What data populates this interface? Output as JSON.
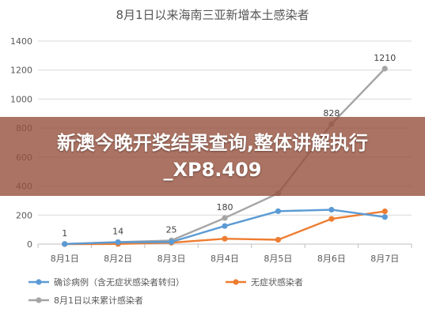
{
  "chart_data": {
    "type": "line",
    "title": "8月1日以来海南三亚新增本土感染者",
    "categories": [
      "8月1日",
      "8月2日",
      "8月3日",
      "8月4日",
      "8月5日",
      "8月6日",
      "8月7日"
    ],
    "ylim": [
      0,
      1400
    ],
    "yticks": [
      0,
      200,
      400,
      600,
      800,
      1000,
      1200,
      1400
    ],
    "grid": true,
    "legend_position": "bottom",
    "series": [
      {
        "name": "确诊病例（含无症状感染者转归）",
        "color": "#5b9bd5",
        "values": [
          1,
          13,
          15,
          125,
          227,
          237,
          187
        ],
        "data_labels": [
          null,
          null,
          null,
          null,
          null,
          null,
          null
        ]
      },
      {
        "name": "无症状感染者",
        "color": "#ed7d31",
        "values": [
          0,
          1,
          10,
          37,
          30,
          174,
          226
        ],
        "data_labels": [
          null,
          null,
          null,
          null,
          null,
          null,
          null
        ]
      },
      {
        "name": "8月1日以来累计感染者",
        "color": "#a5a5a5",
        "values": [
          1,
          14,
          25,
          180,
          350,
          828,
          1210
        ],
        "data_labels": [
          "1",
          "14",
          "25",
          "180",
          null,
          "828",
          "1210"
        ]
      }
    ]
  },
  "overlay": {
    "banner_text": "新澳今晚开奖结果查询,整体讲解执行_XP8.409"
  }
}
